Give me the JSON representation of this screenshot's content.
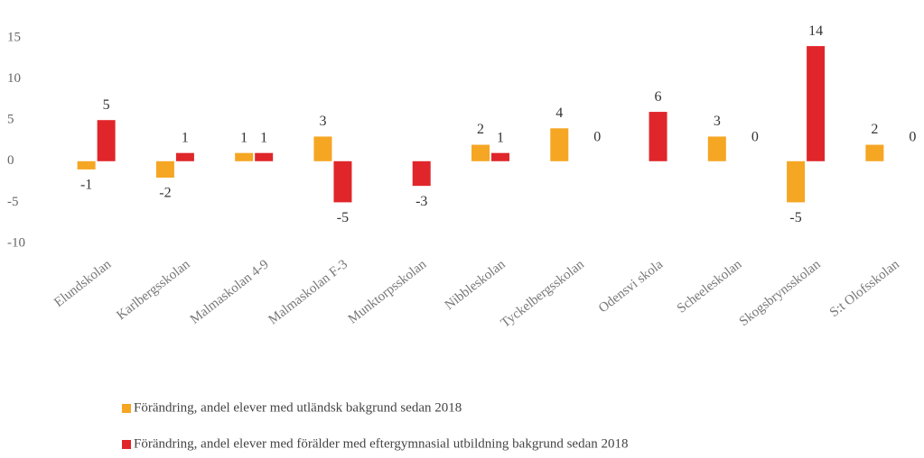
{
  "chart_data": {
    "type": "bar",
    "categories": [
      "Elundskolan",
      "Karlbergsskolan",
      "Malmaskolan 4-9",
      "Malmaskolan F-3",
      "Munktorpsskolan",
      "Nibbleskolan",
      "Tyckelbergsskolan",
      "Odensvi skola",
      "Scheeleskolan",
      "Skogsbrynsskolan",
      "S:t Olofsskolan"
    ],
    "series": [
      {
        "name": "Förändring, andel elever med utländsk bakgrund sedan 2018",
        "color": "#f5a623",
        "values": [
          -1,
          -2,
          1,
          3,
          null,
          2,
          4,
          null,
          3,
          -5,
          2
        ]
      },
      {
        "name": "Förändring, andel elever med förälder med eftergymnasial utbildning bakgrund sedan 2018",
        "color": "#e0262a",
        "values": [
          5,
          1,
          1,
          -5,
          -3,
          1,
          0,
          6,
          0,
          14,
          0
        ]
      }
    ],
    "ylim": [
      -10,
      15.5
    ],
    "yticks": [
      -10,
      -5,
      0,
      5,
      10,
      15
    ],
    "grid": false,
    "legend": "bottom"
  }
}
